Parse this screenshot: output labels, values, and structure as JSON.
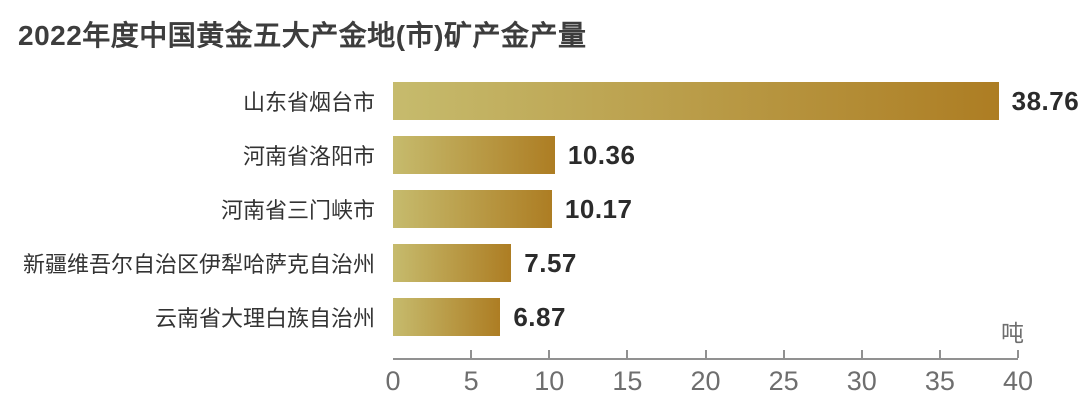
{
  "page": {
    "background": "#ffffff"
  },
  "title": "2022年度中国黄金五大产金地(市)矿产金产量",
  "chart_data": {
    "type": "bar",
    "orientation": "horizontal",
    "title": "2022年度中国黄金五大产金地(市)矿产金产量",
    "unit_label": "吨",
    "categories": [
      "山东省烟台市",
      "河南省洛阳市",
      "河南省三门峡市",
      "新疆维吾尔自治区伊犁哈萨克自治州",
      "云南省大理白族自治州"
    ],
    "values": [
      38.76,
      10.36,
      10.17,
      7.57,
      6.87
    ],
    "value_labels": [
      "38.76",
      "10.36",
      "10.17",
      "7.57",
      "6.87"
    ],
    "xlim": [
      0,
      40
    ],
    "x_ticks": [
      "0",
      "5",
      "10",
      "15",
      "20",
      "25",
      "30",
      "35",
      "40"
    ],
    "grid": false,
    "legend": "none",
    "bar_gradient": {
      "start": "#c6bb6d",
      "end": "#ad7d23"
    }
  },
  "colors": {
    "title_text": "#3d3d3d",
    "category_text": "#333333",
    "value_text": "#2b2b2b",
    "axis_line": "#919191",
    "axis_tick_text": "#6e6e6e",
    "bar_start": "#c6bb6d",
    "bar_end": "#ad7d23",
    "background": "#ffffff"
  }
}
